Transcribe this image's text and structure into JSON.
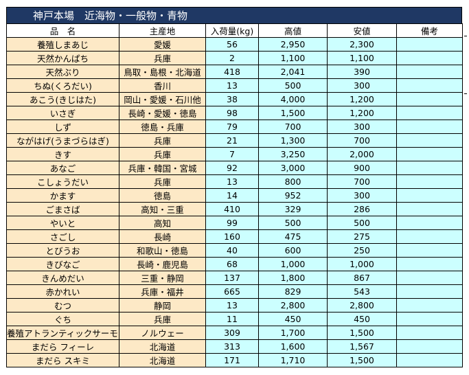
{
  "title": "神戸本場　近海物・一般物・青物",
  "columns": {
    "name": "品　名",
    "origin": "主産地",
    "volume": "入荷量(kg)",
    "high": "高値",
    "low": "安値",
    "note": "備考"
  },
  "rows": [
    {
      "name": "養殖しまあじ",
      "origin": "愛媛",
      "volume": "56",
      "high": "2,950",
      "low": "2,300",
      "note": ""
    },
    {
      "name": "天然かんぱち",
      "origin": "兵庫",
      "volume": "2",
      "high": "1,100",
      "low": "1,100",
      "note": ""
    },
    {
      "name": "天然ぶり",
      "origin": "鳥取・島根・北海道",
      "volume": "418",
      "high": "2,041",
      "low": "390",
      "note": ""
    },
    {
      "name": "ちぬ(くろだい)",
      "origin": "香川",
      "volume": "13",
      "high": "500",
      "low": "300",
      "note": ""
    },
    {
      "name": "あこう(きじはた)",
      "origin": "岡山・愛媛・石川他",
      "volume": "38",
      "high": "4,000",
      "low": "1,200",
      "note": ""
    },
    {
      "name": "いさぎ",
      "origin": "長崎・愛媛・徳島",
      "volume": "98",
      "high": "1,500",
      "low": "1,200",
      "note": ""
    },
    {
      "name": "しず",
      "origin": "徳島・兵庫",
      "volume": "79",
      "high": "700",
      "low": "300",
      "note": ""
    },
    {
      "name": "ながはげ(うまづらはぎ)",
      "origin": "兵庫",
      "volume": "21",
      "high": "1,300",
      "low": "700",
      "note": ""
    },
    {
      "name": "きす",
      "origin": "兵庫",
      "volume": "7",
      "high": "3,250",
      "low": "2,000",
      "note": ""
    },
    {
      "name": "あなご",
      "origin": "兵庫・韓国・宮城",
      "volume": "92",
      "high": "3,000",
      "low": "900",
      "note": ""
    },
    {
      "name": "こしょうだい",
      "origin": "兵庫",
      "volume": "13",
      "high": "800",
      "low": "700",
      "note": ""
    },
    {
      "name": "かます",
      "origin": "徳島",
      "volume": "14",
      "high": "952",
      "low": "300",
      "note": ""
    },
    {
      "name": "ごまさば",
      "origin": "高知・三重",
      "volume": "410",
      "high": "329",
      "low": "286",
      "note": ""
    },
    {
      "name": "やいと",
      "origin": "高知",
      "volume": "99",
      "high": "500",
      "low": "500",
      "note": ""
    },
    {
      "name": "さごし",
      "origin": "長崎",
      "volume": "160",
      "high": "475",
      "low": "275",
      "note": ""
    },
    {
      "name": "とびうお",
      "origin": "和歌山・徳島",
      "volume": "40",
      "high": "600",
      "low": "250",
      "note": ""
    },
    {
      "name": "きびなご",
      "origin": "長崎・鹿児島",
      "volume": "68",
      "high": "1,000",
      "low": "1,000",
      "note": ""
    },
    {
      "name": "きんめだい",
      "origin": "三重・静岡",
      "volume": "137",
      "high": "1,800",
      "low": "867",
      "note": ""
    },
    {
      "name": "赤かれい",
      "origin": "兵庫・福井",
      "volume": "665",
      "high": "829",
      "low": "543",
      "note": ""
    },
    {
      "name": "むつ",
      "origin": "静岡",
      "volume": "13",
      "high": "2,800",
      "low": "2,800",
      "note": ""
    },
    {
      "name": "ぐち",
      "origin": "兵庫",
      "volume": "11",
      "high": "450",
      "low": "450",
      "note": ""
    },
    {
      "name": "養殖アトランティックサーモン",
      "origin": "ノルウェー",
      "volume": "309",
      "high": "1,700",
      "low": "1,500",
      "note": ""
    },
    {
      "name": "まだら フィーレ",
      "origin": "北海道",
      "volume": "313",
      "high": "1,600",
      "low": "1,567",
      "note": ""
    },
    {
      "name": "まだら スキミ",
      "origin": "北海道",
      "volume": "171",
      "high": "1,710",
      "low": "1,500",
      "note": ""
    }
  ]
}
